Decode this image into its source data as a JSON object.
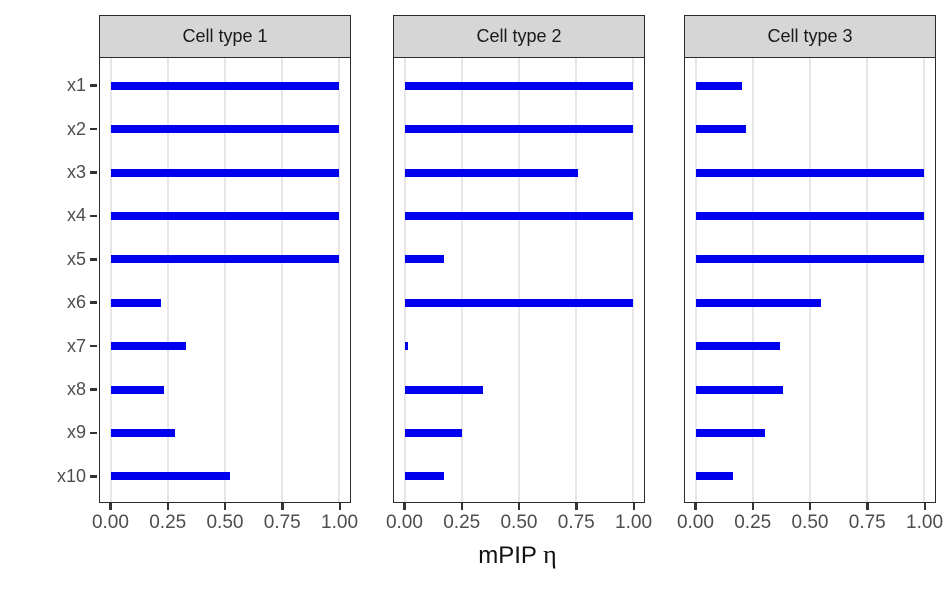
{
  "chart_data": {
    "type": "bar",
    "orientation": "horizontal",
    "title": "",
    "xlabel": "mPIP η",
    "xlabel_prefix": "mPIP",
    "xlabel_symbol": "η",
    "ylabel": "",
    "categories": [
      "x1",
      "x2",
      "x3",
      "x4",
      "x5",
      "x6",
      "x7",
      "x8",
      "x9",
      "x10"
    ],
    "xlim": [
      0.0,
      1.0
    ],
    "x_tick_labels": [
      "0.00",
      "0.25",
      "0.50",
      "0.75",
      "1.00"
    ],
    "x_tick_values": [
      0.0,
      0.25,
      0.5,
      0.75,
      1.0
    ],
    "grid": "vertical major gridlines only",
    "legend": "none",
    "facets": [
      {
        "title": "Cell type 1",
        "values": [
          1.0,
          1.0,
          1.0,
          1.0,
          1.0,
          0.22,
          0.33,
          0.23,
          0.28,
          0.52
        ]
      },
      {
        "title": "Cell type 2",
        "values": [
          1.0,
          1.0,
          0.76,
          1.0,
          0.17,
          1.0,
          0.01,
          0.34,
          0.25,
          0.17
        ]
      },
      {
        "title": "Cell type 3",
        "values": [
          0.2,
          0.22,
          1.0,
          1.0,
          1.0,
          0.55,
          0.37,
          0.38,
          0.3,
          0.16
        ]
      }
    ],
    "colors": {
      "bar": "#0000ee",
      "strip_background": "#d6d6d6",
      "panel_border": "#2b2b2b",
      "gridline": "#e7e7e7",
      "axis_text": "#4d4d4d",
      "tick_mark": "#333333"
    }
  }
}
